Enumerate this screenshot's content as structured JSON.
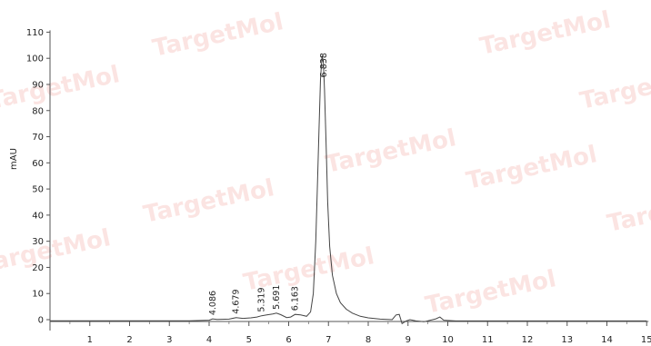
{
  "chart_data": {
    "type": "line",
    "title": "",
    "xlabel": "",
    "ylabel": "mAU",
    "xlim": [
      0,
      15
    ],
    "ylim": [
      -1,
      110
    ],
    "x_ticks": [
      1,
      2,
      3,
      4,
      5,
      6,
      7,
      8,
      9,
      10,
      11,
      12,
      13,
      14,
      15
    ],
    "y_ticks": [
      0,
      10,
      20,
      30,
      40,
      50,
      60,
      70,
      80,
      90,
      100,
      110
    ],
    "grid": false,
    "legend": "none",
    "line_color": "#444444",
    "peaks": [
      {
        "label": "4.086",
        "x": 4.086,
        "y": 0.3
      },
      {
        "label": "4.679",
        "x": 4.679,
        "y": 0.8
      },
      {
        "label": "5.319",
        "x": 5.319,
        "y": 1.5
      },
      {
        "label": "5.691",
        "x": 5.691,
        "y": 2.5
      },
      {
        "label": "6.163",
        "x": 6.163,
        "y": 2.0
      },
      {
        "label": "6.838",
        "x": 6.838,
        "y": 101
      }
    ],
    "series": [
      {
        "x": [
          0,
          3.5,
          4.0,
          4.086,
          4.2,
          4.5,
          4.679,
          4.85,
          5.05,
          5.2,
          5.319,
          5.45,
          5.6,
          5.691,
          5.8,
          5.95,
          6.05,
          6.163,
          6.3,
          6.45,
          6.55,
          6.62,
          6.68,
          6.72,
          6.76,
          6.8,
          6.838,
          6.87,
          6.9,
          6.94,
          6.98,
          7.03,
          7.1,
          7.2,
          7.3,
          7.45,
          7.6,
          7.8,
          8.0,
          8.3,
          8.6,
          8.7,
          8.78,
          8.85,
          8.95,
          9.05,
          9.2,
          9.4,
          9.7,
          9.8,
          9.9,
          10.2,
          11,
          12,
          13,
          14,
          15
        ],
        "y": [
          -0.4,
          -0.4,
          -0.2,
          0.3,
          0.1,
          0.2,
          0.8,
          0.5,
          0.7,
          1.0,
          1.5,
          1.8,
          2.2,
          2.5,
          1.9,
          0.8,
          1.0,
          2.0,
          1.8,
          1.3,
          3.0,
          10.0,
          30.0,
          50.0,
          72.0,
          92.0,
          101.0,
          99.0,
          88.0,
          68.0,
          45.0,
          28.0,
          17.0,
          10.0,
          6.5,
          4.0,
          2.5,
          1.3,
          0.7,
          0.2,
          0.0,
          1.8,
          2.0,
          -1.5,
          -0.5,
          0.0,
          -0.5,
          -0.8,
          0.3,
          1.0,
          -0.2,
          -0.5,
          -0.5,
          -0.5,
          -0.5,
          -0.5,
          -0.5
        ]
      }
    ]
  },
  "watermarks": [
    "TargetMol",
    "TargetMol",
    "TargetMol",
    "TargetMol",
    "TargetMol",
    "TargetMol",
    "TargetMol",
    "TargetMol",
    "TargetMol",
    "TargetMol",
    "TargetMol"
  ]
}
